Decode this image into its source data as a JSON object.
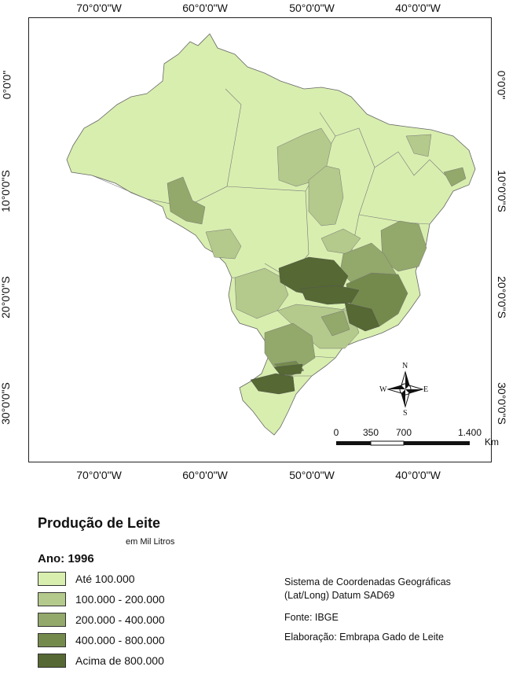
{
  "map": {
    "top_ticks": [
      "70°0'0\"W",
      "60°0'0\"W",
      "50°0'0\"W",
      "40°0'0\"W"
    ],
    "bottom_ticks": [
      "70°0'0\"W",
      "60°0'0\"W",
      "50°0'0\"W",
      "40°0'0\"W"
    ],
    "lat_ticks": [
      "0°0'0\"",
      "10°0'0\"S",
      "20°0'0\"S",
      "30°0'0\"S"
    ],
    "compass": {
      "n": "N",
      "s": "S",
      "e": "E",
      "w": "W"
    },
    "scale": {
      "labels": [
        "0",
        "350",
        "700",
        "1.400"
      ],
      "unit": "Km"
    },
    "colors": {
      "class1": "#d8eeaf",
      "class2": "#b4c98c",
      "class3": "#93a86b",
      "class4": "#748a4d",
      "class5": "#566833"
    }
  },
  "legend": {
    "title": "Produção de Leite",
    "subtitle": "em Mil Litros",
    "year": "Ano: 1996",
    "items": [
      {
        "label": "Até 100.000",
        "color": "#d8eeaf"
      },
      {
        "label": "100.000 - 200.000",
        "color": "#b4c98c"
      },
      {
        "label": "200.000 - 400.000",
        "color": "#93a86b"
      },
      {
        "label": "400.000 - 800.000",
        "color": "#748a4d"
      },
      {
        "label": "Acima de 800.000",
        "color": "#566833"
      }
    ]
  },
  "info": {
    "line1": "Sistema de Coordenadas Geográficas",
    "line2": "(Lat/Long) Datum SAD69",
    "source": "Fonte: IBGE",
    "credit": "Elaboração: Embrapa Gado de Leite"
  }
}
